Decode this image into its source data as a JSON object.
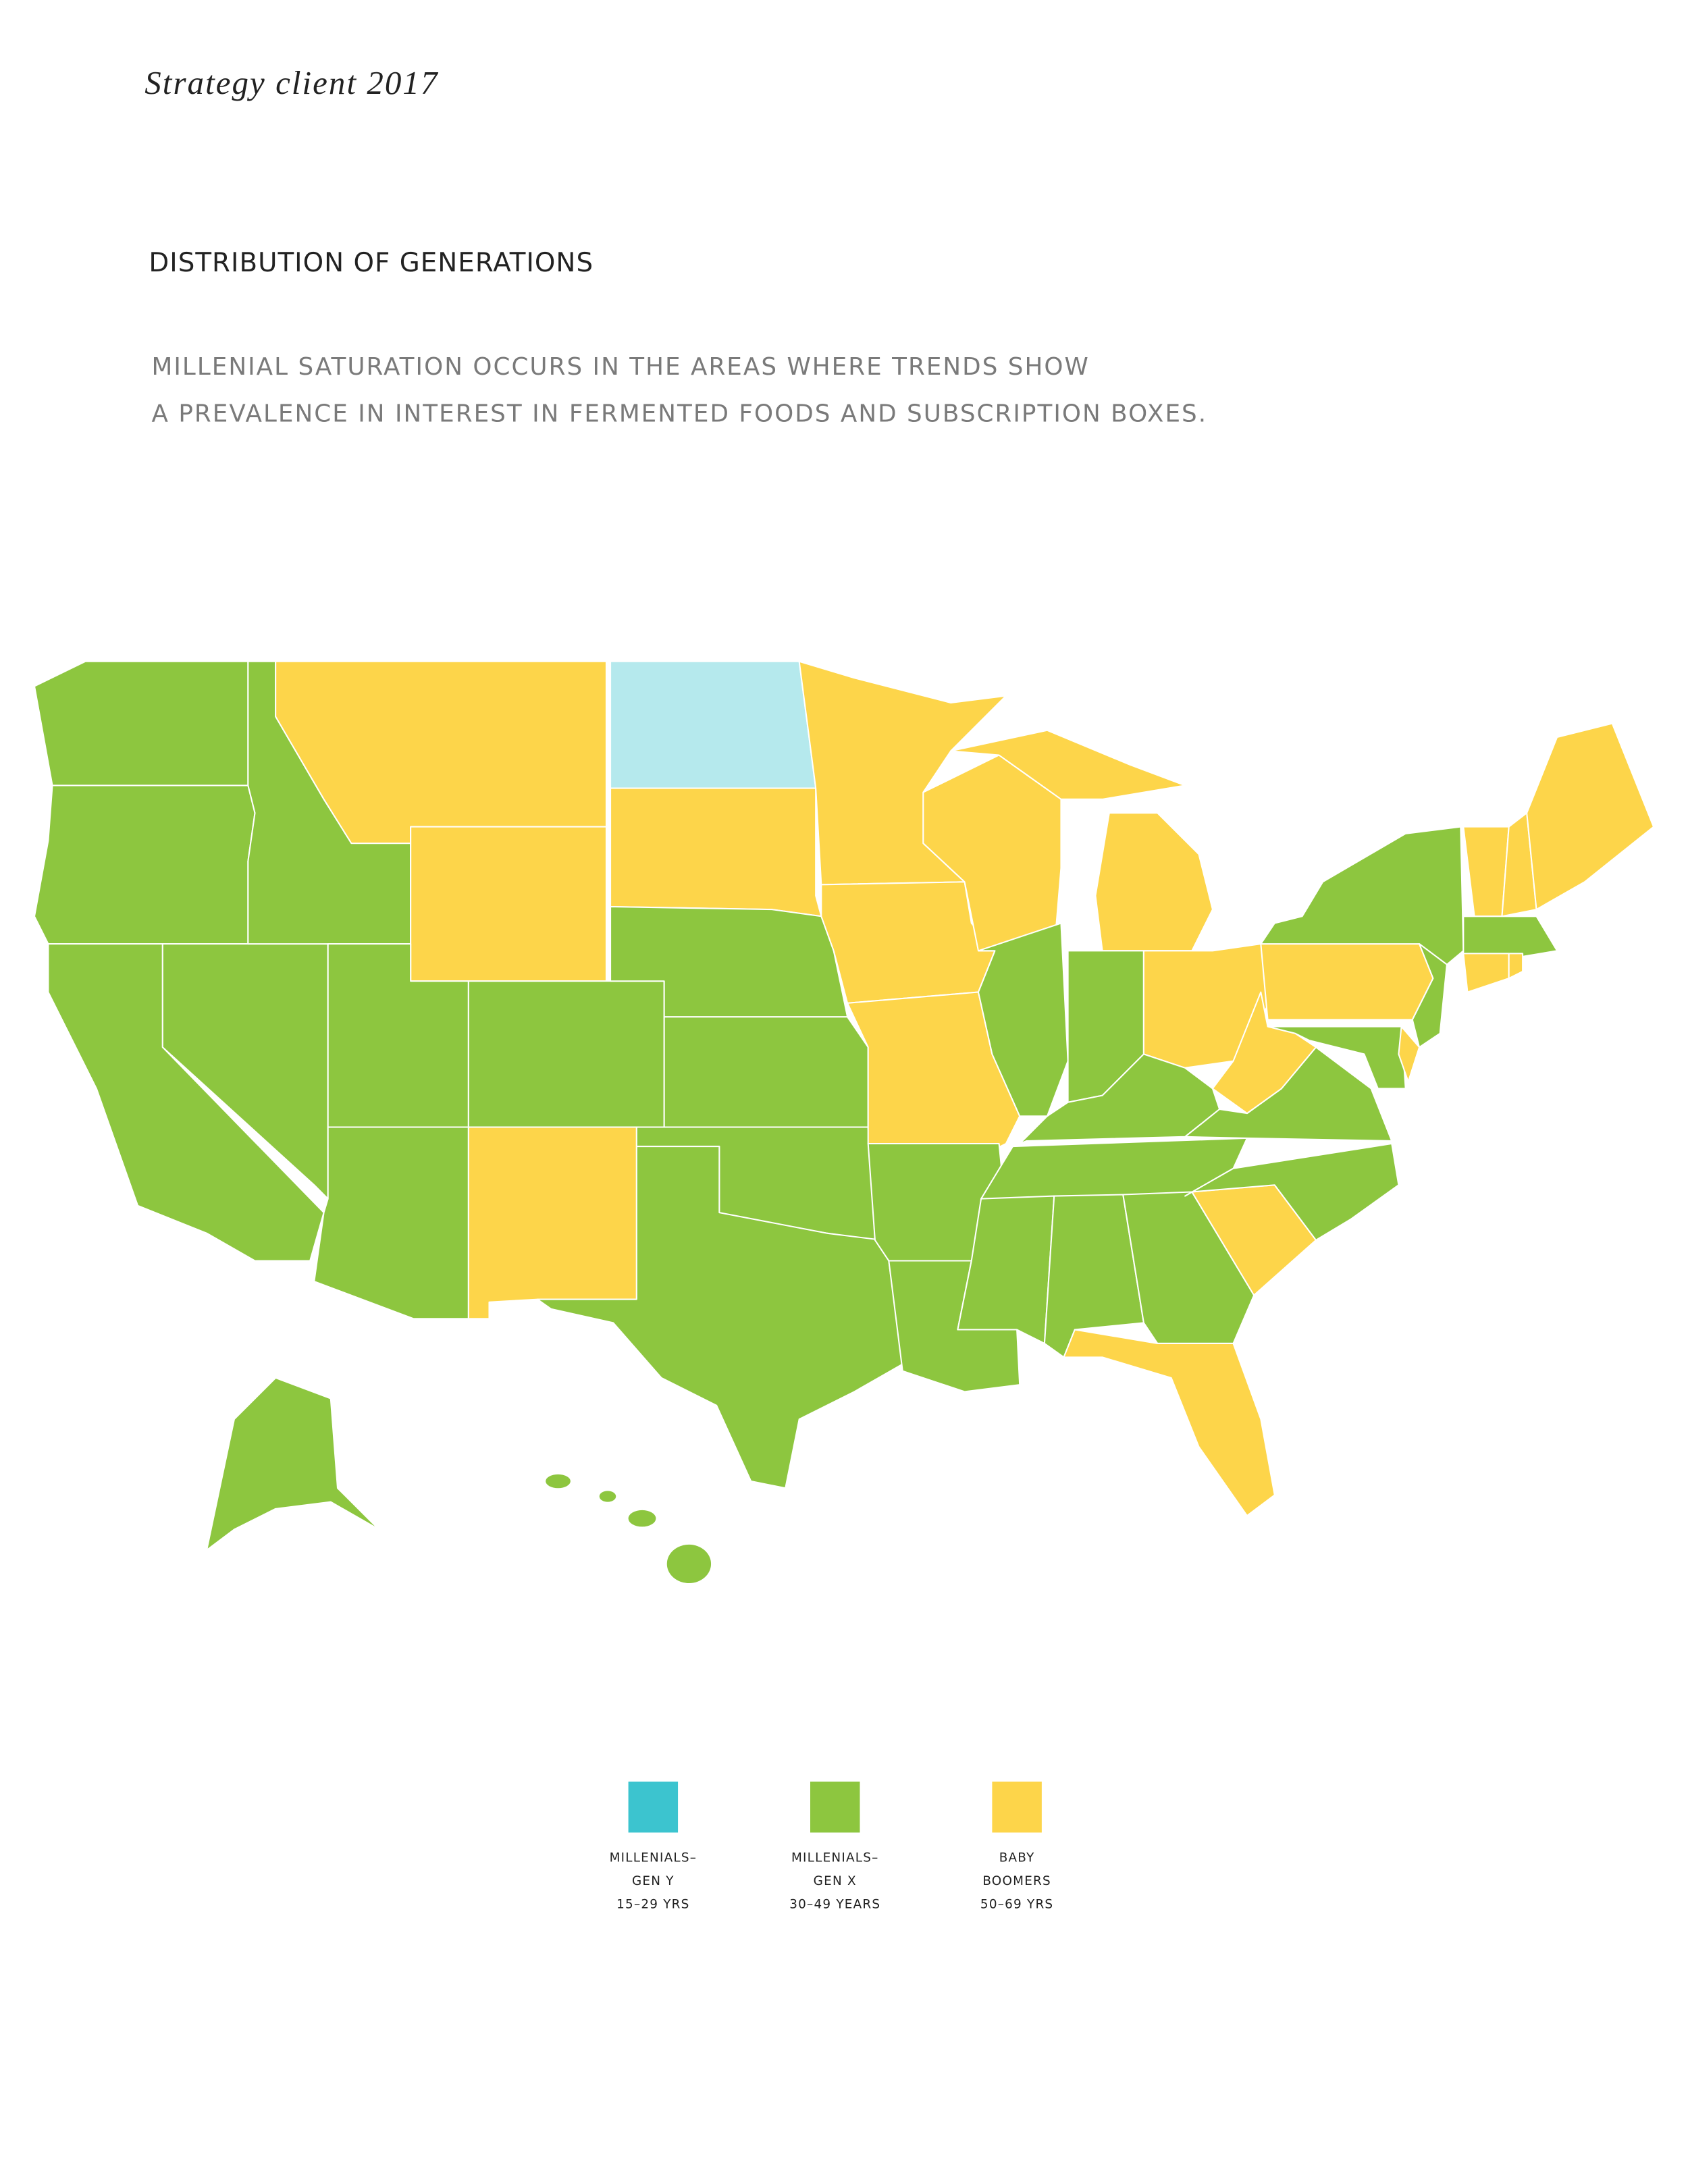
{
  "header": {
    "client": "Strategy client 2017"
  },
  "title": "DISTRIBUTION OF GENERATIONS",
  "subtitle": [
    "MILLENIAL SATURATION OCCURS IN THE AREAS WHERE TRENDS SHOW",
    "A PREVALENCE IN INTEREST IN FERMENTED FOODS AND SUBSCRIPTION BOXES."
  ],
  "legend": [
    {
      "color": "#3cc4cf",
      "label": [
        "MILLENIALS–",
        "GEN Y",
        "15–29 YRS"
      ]
    },
    {
      "color": "#8dc63f",
      "label": [
        "MILLENIALS–",
        "GEN X",
        "30–49 YEARS"
      ]
    },
    {
      "color": "#fdd54a",
      "label": [
        "BABY",
        "BOOMERS",
        "50–69 YRS"
      ]
    }
  ]
}
